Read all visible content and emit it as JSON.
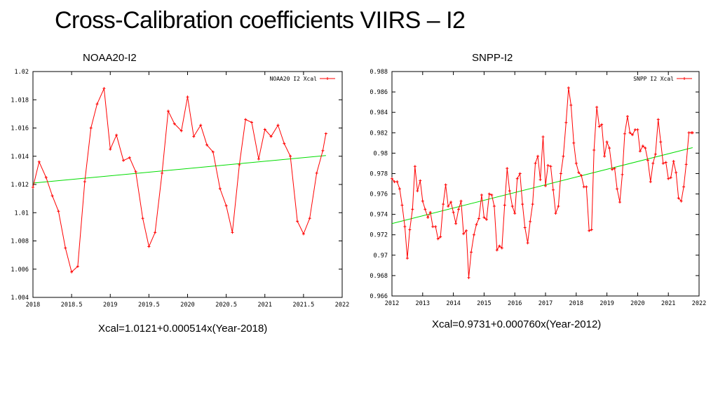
{
  "slide": {
    "title": "Cross-Calibration coefficients VIIRS – I2"
  },
  "chart_data": [
    {
      "type": "line",
      "heading": "NOAA20-I2",
      "formula": "Xcal=1.0121+0.000514x(Year-2018)",
      "legend_label": "NOAA20 I2 Xcal",
      "legend_position": "top-right",
      "series_color": "#ff0000",
      "fit_color": "#00dd00",
      "xlim": [
        2018,
        2022
      ],
      "ylim": [
        1.004,
        1.02
      ],
      "xticks": [
        2018,
        2018.5,
        2019,
        2019.5,
        2020,
        2020.5,
        2021,
        2021.5,
        2022
      ],
      "xtick_labels": [
        "2018",
        "2018.5",
        "2019",
        "2019.5",
        "2020",
        "2020.5",
        "2021",
        "2021.5",
        "2022"
      ],
      "yticks": [
        1.004,
        1.006,
        1.008,
        1.01,
        1.012,
        1.014,
        1.016,
        1.018,
        1.02
      ],
      "ytick_labels": [
        "1.004",
        "1.006",
        "1.008",
        "1.01",
        "1.012",
        "1.014",
        "1.016",
        "1.018",
        "1.02"
      ],
      "x": [
        2018.0,
        2018.08,
        2018.17,
        2018.25,
        2018.33,
        2018.42,
        2018.5,
        2018.58,
        2018.67,
        2018.75,
        2018.83,
        2018.92,
        2019.0,
        2019.08,
        2019.17,
        2019.25,
        2019.33,
        2019.42,
        2019.5,
        2019.58,
        2019.67,
        2019.75,
        2019.83,
        2019.92,
        2020.0,
        2020.08,
        2020.17,
        2020.25,
        2020.33,
        2020.42,
        2020.5,
        2020.58,
        2020.67,
        2020.75,
        2020.83,
        2020.92,
        2021.0,
        2021.08,
        2021.17,
        2021.25,
        2021.33,
        2021.42,
        2021.5,
        2021.58,
        2021.67,
        2021.75,
        2021.79
      ],
      "y": [
        1.0118,
        1.0136,
        1.0125,
        1.0112,
        1.0101,
        1.0075,
        1.0058,
        1.0062,
        1.0122,
        1.016,
        1.0177,
        1.0188,
        1.0145,
        1.0155,
        1.0137,
        1.0139,
        1.0129,
        1.0096,
        1.0076,
        1.0086,
        1.0128,
        1.0172,
        1.0163,
        1.0158,
        1.0182,
        1.0154,
        1.0162,
        1.0148,
        1.0143,
        1.0117,
        1.0105,
        1.0086,
        1.0134,
        1.0166,
        1.0164,
        1.0138,
        1.0159,
        1.0154,
        1.0162,
        1.0149,
        1.014,
        1.0094,
        1.0085,
        1.0096,
        1.0128,
        1.0144,
        1.0156
      ],
      "fit": {
        "intercept": 1.0121,
        "slope": 0.000514,
        "x0": 2018,
        "x_range": [
          2018,
          2021.79
        ]
      }
    },
    {
      "type": "line",
      "heading": "SNPP-I2",
      "formula": "Xcal=0.9731+0.000760x(Year-2012)",
      "legend_label": "SNPP I2 Xcal",
      "legend_position": "top-right",
      "series_color": "#ff0000",
      "fit_color": "#00dd00",
      "xlim": [
        2012,
        2022
      ],
      "ylim": [
        0.966,
        0.988
      ],
      "xticks": [
        2012,
        2013,
        2014,
        2015,
        2016,
        2017,
        2018,
        2019,
        2020,
        2021,
        2022
      ],
      "xtick_labels": [
        "2012",
        "2013",
        "2014",
        "2015",
        "2016",
        "2017",
        "2018",
        "2019",
        "2020",
        "2021",
        "2022"
      ],
      "yticks": [
        0.966,
        0.968,
        0.97,
        0.972,
        0.974,
        0.976,
        0.978,
        0.98,
        0.982,
        0.984,
        0.986,
        0.988
      ],
      "ytick_labels": [
        "0.966",
        "0.968",
        "0.97",
        "0.972",
        "0.974",
        "0.976",
        "0.978",
        "0.98",
        "0.982",
        "0.984",
        "0.986",
        "0.988"
      ],
      "x": [
        2012.0,
        2012.08,
        2012.17,
        2012.25,
        2012.33,
        2012.42,
        2012.5,
        2012.58,
        2012.67,
        2012.75,
        2012.83,
        2012.92,
        2013.0,
        2013.08,
        2013.17,
        2013.25,
        2013.33,
        2013.42,
        2013.5,
        2013.58,
        2013.67,
        2013.75,
        2013.83,
        2013.92,
        2014.0,
        2014.08,
        2014.17,
        2014.25,
        2014.33,
        2014.42,
        2014.5,
        2014.58,
        2014.67,
        2014.75,
        2014.83,
        2014.92,
        2015.0,
        2015.08,
        2015.17,
        2015.25,
        2015.33,
        2015.42,
        2015.5,
        2015.58,
        2015.67,
        2015.75,
        2015.83,
        2015.92,
        2016.0,
        2016.08,
        2016.17,
        2016.25,
        2016.33,
        2016.42,
        2016.5,
        2016.58,
        2016.67,
        2016.75,
        2016.83,
        2016.92,
        2017.0,
        2017.08,
        2017.17,
        2017.25,
        2017.33,
        2017.42,
        2017.5,
        2017.58,
        2017.67,
        2017.75,
        2017.83,
        2017.92,
        2018.0,
        2018.08,
        2018.17,
        2018.25,
        2018.33,
        2018.42,
        2018.5,
        2018.58,
        2018.67,
        2018.75,
        2018.83,
        2018.92,
        2019.0,
        2019.08,
        2019.17,
        2019.25,
        2019.33,
        2019.42,
        2019.5,
        2019.58,
        2019.67,
        2019.75,
        2019.83,
        2019.92,
        2020.0,
        2020.08,
        2020.17,
        2020.25,
        2020.33,
        2020.42,
        2020.5,
        2020.58,
        2020.67,
        2020.75,
        2020.83,
        2020.92,
        2021.0,
        2021.08,
        2021.17,
        2021.25,
        2021.33,
        2021.42,
        2021.5,
        2021.58,
        2021.67,
        2021.75,
        2021.79
      ],
      "y": [
        0.9775,
        0.9772,
        0.9772,
        0.9765,
        0.9749,
        0.9728,
        0.9697,
        0.9725,
        0.9745,
        0.9787,
        0.9763,
        0.9773,
        0.9753,
        0.9745,
        0.9737,
        0.9742,
        0.9728,
        0.9728,
        0.9716,
        0.9718,
        0.975,
        0.9769,
        0.9748,
        0.9752,
        0.9742,
        0.9731,
        0.9745,
        0.9753,
        0.9721,
        0.9724,
        0.9678,
        0.9703,
        0.972,
        0.973,
        0.9736,
        0.9759,
        0.9737,
        0.9735,
        0.976,
        0.9759,
        0.9748,
        0.9705,
        0.9709,
        0.9707,
        0.9749,
        0.9785,
        0.9763,
        0.9748,
        0.9741,
        0.9775,
        0.978,
        0.975,
        0.9727,
        0.9712,
        0.9733,
        0.975,
        0.979,
        0.9797,
        0.9774,
        0.9816,
        0.9768,
        0.9788,
        0.9787,
        0.9764,
        0.9741,
        0.9748,
        0.978,
        0.9797,
        0.983,
        0.9864,
        0.9847,
        0.981,
        0.979,
        0.9781,
        0.9778,
        0.9767,
        0.9767,
        0.9724,
        0.9725,
        0.9803,
        0.9845,
        0.9826,
        0.9828,
        0.9797,
        0.9811,
        0.9805,
        0.9784,
        0.9785,
        0.9765,
        0.9752,
        0.9779,
        0.9819,
        0.9836,
        0.982,
        0.9818,
        0.9823,
        0.9823,
        0.9802,
        0.9807,
        0.9805,
        0.9793,
        0.9772,
        0.979,
        0.9799,
        0.9833,
        0.9811,
        0.979,
        0.9791,
        0.9775,
        0.9776,
        0.9792,
        0.9781,
        0.9756,
        0.9753,
        0.9767,
        0.9789,
        0.982,
        0.982,
        0.982
      ],
      "fit": {
        "intercept": 0.9731,
        "slope": 0.00076,
        "x0": 2012,
        "x_range": [
          2012,
          2021.79
        ]
      }
    }
  ]
}
